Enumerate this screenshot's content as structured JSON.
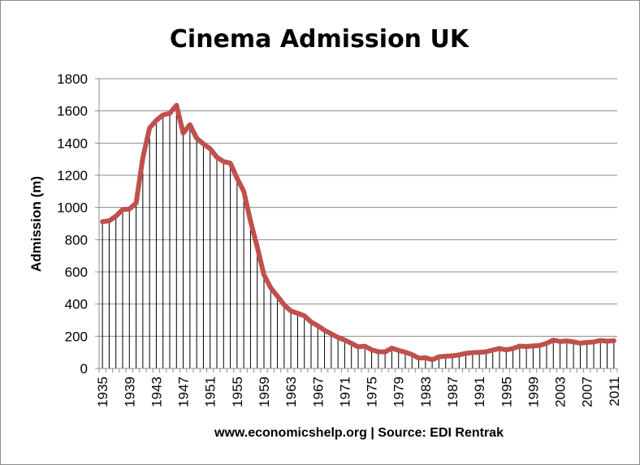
{
  "chart_data": {
    "type": "line",
    "title": "Cinema Admission UK",
    "ylabel": "Admission (m)",
    "xlabel": "",
    "footer": "www.economicshelp.org | Source: EDI Rentrak",
    "ylim": [
      0,
      1800
    ],
    "yticks": [
      0,
      200,
      400,
      600,
      800,
      1000,
      1200,
      1400,
      1600,
      1800
    ],
    "x_tick_labels": [
      "1935",
      "1939",
      "1943",
      "1947",
      "1951",
      "1955",
      "1959",
      "1963",
      "1967",
      "1971",
      "1975",
      "1979",
      "1983",
      "1987",
      "1991",
      "1995",
      "1999",
      "2003",
      "2007",
      "2011"
    ],
    "grid": "horizontal",
    "drop_lines": true,
    "series": [
      {
        "color": "#c0504d",
        "x": [
          1935,
          1936,
          1937,
          1938,
          1939,
          1940,
          1941,
          1942,
          1943,
          1944,
          1945,
          1946,
          1947,
          1948,
          1949,
          1950,
          1951,
          1952,
          1953,
          1954,
          1955,
          1956,
          1957,
          1958,
          1959,
          1960,
          1961,
          1962,
          1963,
          1964,
          1965,
          1966,
          1967,
          1968,
          1969,
          1970,
          1971,
          1972,
          1973,
          1974,
          1975,
          1976,
          1977,
          1978,
          1979,
          1980,
          1981,
          1982,
          1983,
          1984,
          1985,
          1986,
          1987,
          1988,
          1989,
          1990,
          1991,
          1992,
          1993,
          1994,
          1995,
          1996,
          1997,
          1998,
          1999,
          2000,
          2001,
          2002,
          2003,
          2004,
          2005,
          2006,
          2007,
          2008,
          2009,
          2010,
          2011
        ],
        "values": [
          912,
          917,
          946,
          987,
          990,
          1027,
          1309,
          1494,
          1541,
          1575,
          1585,
          1635,
          1462,
          1514,
          1430,
          1395,
          1365,
          1312,
          1285,
          1276,
          1182,
          1101,
          915,
          755,
          581,
          501,
          449,
          395,
          357,
          343,
          327,
          289,
          265,
          237,
          215,
          193,
          176,
          156,
          134,
          138,
          116,
          104,
          103,
          126,
          112,
          101,
          86,
          64,
          66,
          54,
          72,
          76,
          78,
          84,
          94,
          98,
          100,
          103,
          114,
          124,
          115,
          124,
          139,
          136,
          140,
          143,
          156,
          176,
          167,
          171,
          165,
          157,
          162,
          164,
          174,
          169,
          172
        ]
      }
    ]
  }
}
